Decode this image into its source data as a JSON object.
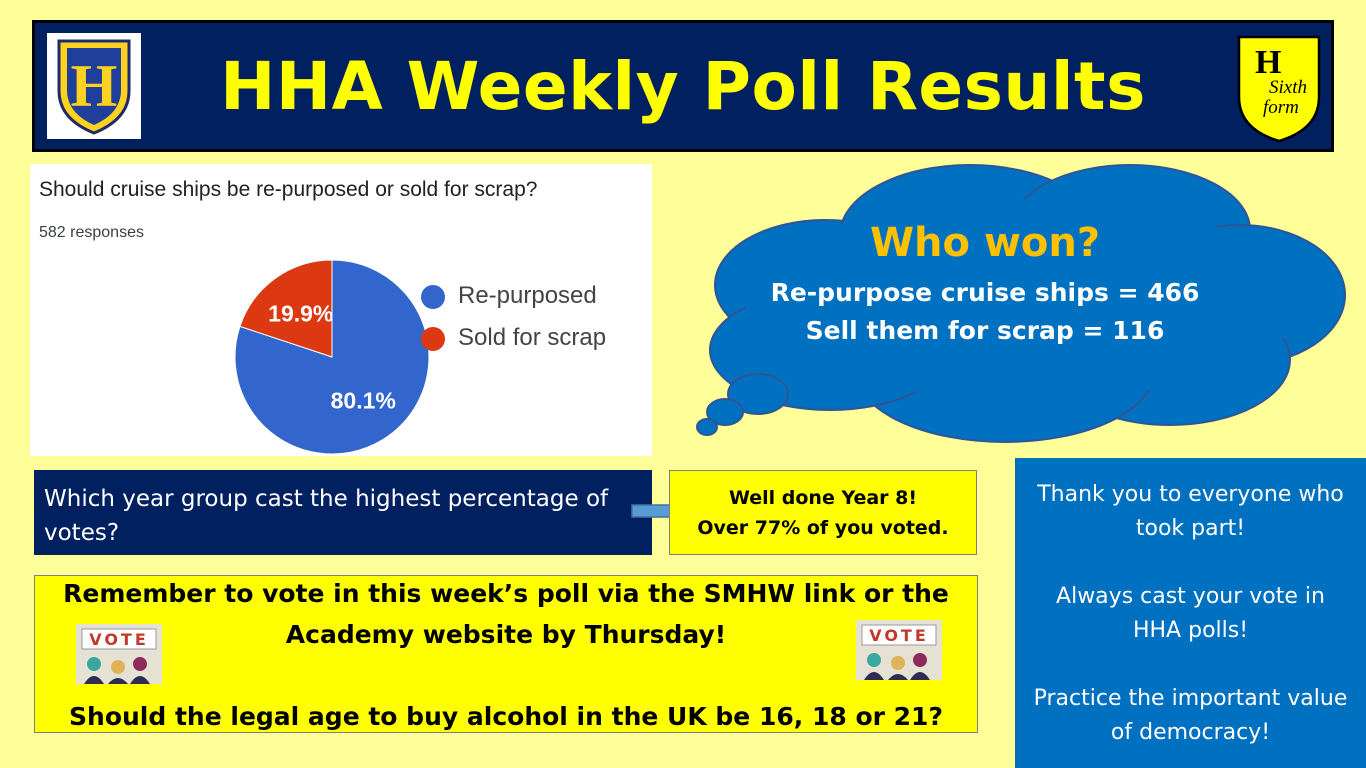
{
  "header": {
    "title": "HHA Weekly Poll Results",
    "logo_left_letter": "H",
    "logo_right_letter": "H",
    "logo_right_text": "Sixth form"
  },
  "poll": {
    "question": "Should cruise ships be re-purposed or sold for scrap?",
    "responses": "582 responses",
    "legend": [
      "Re-purposed",
      "Sold for scrap"
    ],
    "slice_labels": [
      "80.1%",
      "19.9%"
    ]
  },
  "chart_data": {
    "type": "pie",
    "title": "Should cruise ships be re-purposed or sold for scrap?",
    "subtitle": "582 responses",
    "categories": [
      "Re-purposed",
      "Sold for scrap"
    ],
    "values": [
      80.1,
      19.9
    ],
    "colors": [
      "#3366cc",
      "#dc3912"
    ],
    "legend_position": "right"
  },
  "cloud": {
    "title": "Who won?",
    "line1": "Re-purpose cruise ships = 466",
    "line2": "Sell them for scrap = 116"
  },
  "year_group": {
    "question": "Which year group cast the highest percentage of votes?",
    "answer_line1": "Well done Year 8!",
    "answer_line2": "Over 77% of you voted."
  },
  "reminder": {
    "line1": "Remember to vote in this week’s poll via the SMHW link or the",
    "line2": "Academy website by Thursday!",
    "next_question": "Should the legal age to buy alcohol in the UK be 16, 18 or 21?",
    "vote_sign_text": "VOTE"
  },
  "thanks": {
    "p1": "Thank you to everyone who took part!",
    "p2": "Always cast your vote in HHA polls!",
    "p3": "Practice the important value of democracy!"
  },
  "colors": {
    "background": "#ffff99",
    "header_bg": "#002060",
    "header_text": "#ffff00",
    "cloud": "#0070c0",
    "cloud_title": "#ffc000",
    "highlight": "#ffff00"
  }
}
